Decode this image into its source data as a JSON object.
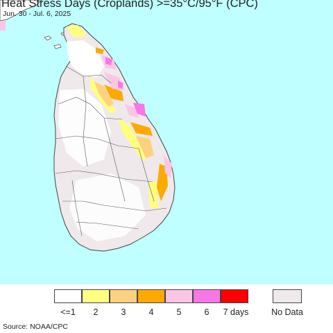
{
  "title": "Heat Stress Days (Croplands) >=35°C/95°F (CPC)",
  "subtitle": "Jun. 30 - Jul. 6, 2025",
  "source": "Source: NOAA/CPC",
  "colors": {
    "ocean": "#bfffff",
    "land": "#ffffff",
    "no_data": "#efe9ec",
    "border": "#444444"
  },
  "legend": {
    "items": [
      {
        "label": "<=1",
        "color": "#ffffff"
      },
      {
        "label": "2",
        "color": "#ffff80"
      },
      {
        "label": "3",
        "color": "#fdd27f"
      },
      {
        "label": "4",
        "color": "#fdaa00"
      },
      {
        "label": "5",
        "color": "#fcc5e6"
      },
      {
        "label": "6",
        "color": "#f877e6"
      },
      {
        "label": "7 days",
        "color": "#ff0000"
      }
    ],
    "no_data": {
      "label": "No Data",
      "color": "#efe9ec"
    }
  }
}
